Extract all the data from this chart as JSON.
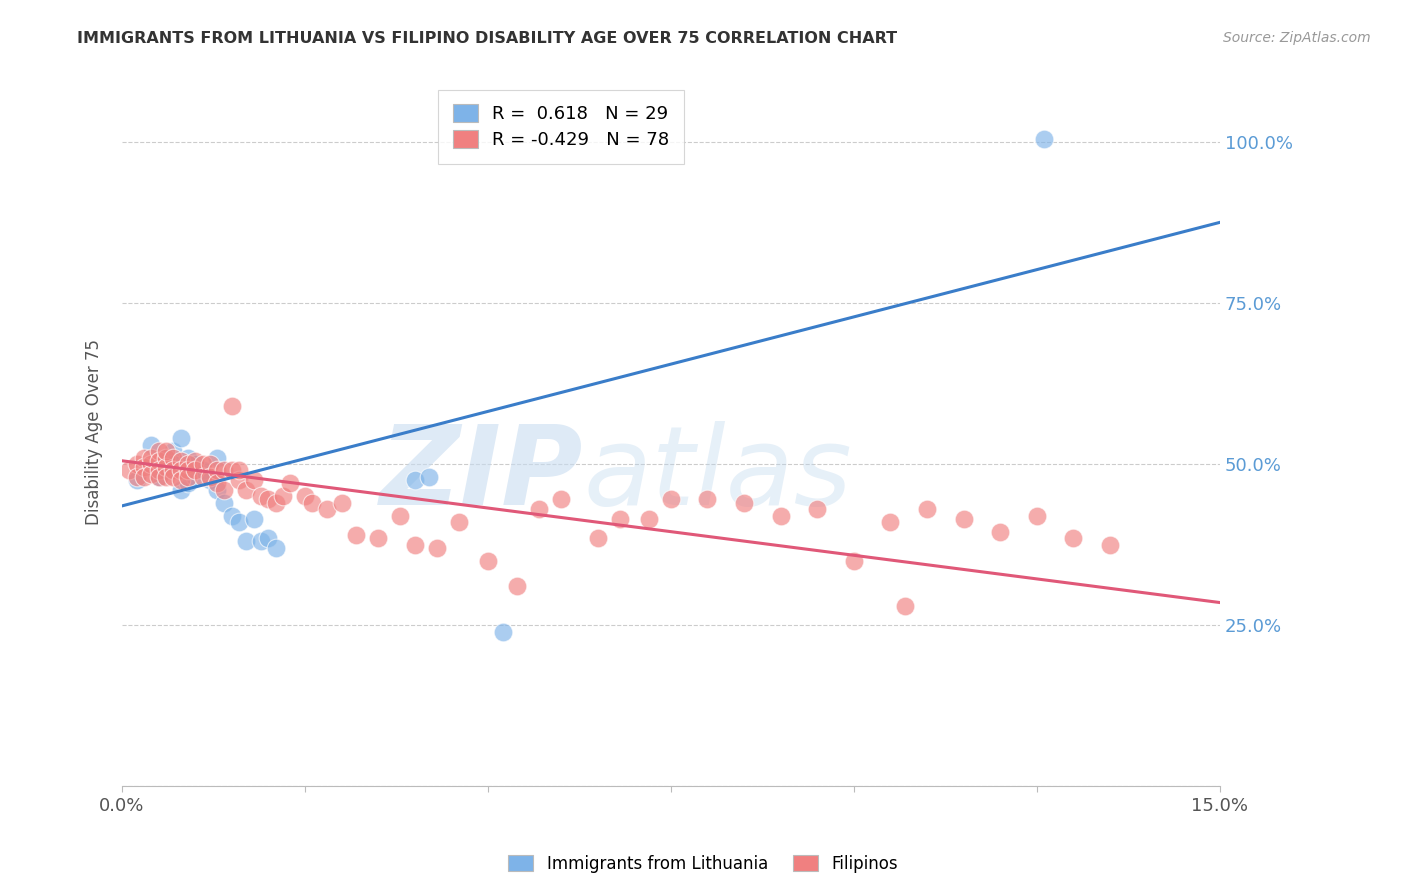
{
  "title": "IMMIGRANTS FROM LITHUANIA VS FILIPINO DISABILITY AGE OVER 75 CORRELATION CHART",
  "source": "Source: ZipAtlas.com",
  "ylabel": "Disability Age Over 75",
  "xlim": [
    0.0,
    0.15
  ],
  "ylim": [
    0.0,
    1.1
  ],
  "ytick_values": [
    0.0,
    0.25,
    0.5,
    0.75,
    1.0
  ],
  "ytick_labels": [
    "",
    "25.0%",
    "50.0%",
    "75.0%",
    "100.0%"
  ],
  "xtick_values": [
    0.0,
    0.025,
    0.05,
    0.075,
    0.1,
    0.125,
    0.15
  ],
  "xtick_labels": [
    "0.0%",
    "",
    "",
    "",
    "",
    "",
    "15.0%"
  ],
  "blue_R": "0.618",
  "blue_N": "29",
  "pink_R": "-0.429",
  "pink_N": "78",
  "blue_color": "#7EB3E8",
  "pink_color": "#F08080",
  "blue_line_color": "#3A7DC9",
  "pink_line_color": "#E05878",
  "watermark_zip": "ZIP",
  "watermark_atlas": "atlas",
  "blue_scatter_x": [
    0.002,
    0.004,
    0.005,
    0.006,
    0.006,
    0.007,
    0.007,
    0.008,
    0.008,
    0.009,
    0.009,
    0.01,
    0.01,
    0.011,
    0.012,
    0.013,
    0.013,
    0.014,
    0.015,
    0.016,
    0.017,
    0.018,
    0.019,
    0.02,
    0.021,
    0.04,
    0.042,
    0.052,
    0.126
  ],
  "blue_scatter_y": [
    0.475,
    0.53,
    0.48,
    0.51,
    0.49,
    0.52,
    0.5,
    0.54,
    0.46,
    0.51,
    0.47,
    0.5,
    0.48,
    0.49,
    0.475,
    0.51,
    0.46,
    0.44,
    0.42,
    0.41,
    0.38,
    0.415,
    0.38,
    0.385,
    0.37,
    0.475,
    0.48,
    0.24,
    1.005
  ],
  "pink_scatter_x": [
    0.001,
    0.002,
    0.002,
    0.003,
    0.003,
    0.003,
    0.004,
    0.004,
    0.004,
    0.005,
    0.005,
    0.005,
    0.005,
    0.006,
    0.006,
    0.006,
    0.006,
    0.007,
    0.007,
    0.007,
    0.008,
    0.008,
    0.008,
    0.009,
    0.009,
    0.009,
    0.01,
    0.01,
    0.011,
    0.011,
    0.012,
    0.012,
    0.013,
    0.013,
    0.014,
    0.014,
    0.015,
    0.015,
    0.016,
    0.016,
    0.017,
    0.018,
    0.019,
    0.02,
    0.021,
    0.022,
    0.023,
    0.025,
    0.026,
    0.028,
    0.03,
    0.032,
    0.035,
    0.038,
    0.04,
    0.043,
    0.046,
    0.05,
    0.054,
    0.057,
    0.06,
    0.065,
    0.068,
    0.072,
    0.075,
    0.08,
    0.085,
    0.09,
    0.095,
    0.1,
    0.105,
    0.11,
    0.115,
    0.12,
    0.125,
    0.13,
    0.135,
    0.107
  ],
  "pink_scatter_y": [
    0.49,
    0.5,
    0.48,
    0.51,
    0.495,
    0.48,
    0.5,
    0.485,
    0.51,
    0.52,
    0.505,
    0.49,
    0.48,
    0.51,
    0.495,
    0.48,
    0.52,
    0.51,
    0.49,
    0.48,
    0.505,
    0.49,
    0.475,
    0.5,
    0.49,
    0.48,
    0.505,
    0.49,
    0.5,
    0.48,
    0.5,
    0.48,
    0.49,
    0.47,
    0.49,
    0.46,
    0.59,
    0.49,
    0.475,
    0.49,
    0.46,
    0.475,
    0.45,
    0.445,
    0.44,
    0.45,
    0.47,
    0.45,
    0.44,
    0.43,
    0.44,
    0.39,
    0.385,
    0.42,
    0.375,
    0.37,
    0.41,
    0.35,
    0.31,
    0.43,
    0.445,
    0.385,
    0.415,
    0.415,
    0.445,
    0.445,
    0.44,
    0.42,
    0.43,
    0.35,
    0.41,
    0.43,
    0.415,
    0.395,
    0.42,
    0.385,
    0.375,
    0.28
  ],
  "blue_line_x0": 0.0,
  "blue_line_x1": 0.15,
  "blue_line_y0": 0.435,
  "blue_line_y1": 0.875,
  "pink_line_x0": 0.0,
  "pink_line_x1": 0.15,
  "pink_line_y0": 0.505,
  "pink_line_y1": 0.285
}
